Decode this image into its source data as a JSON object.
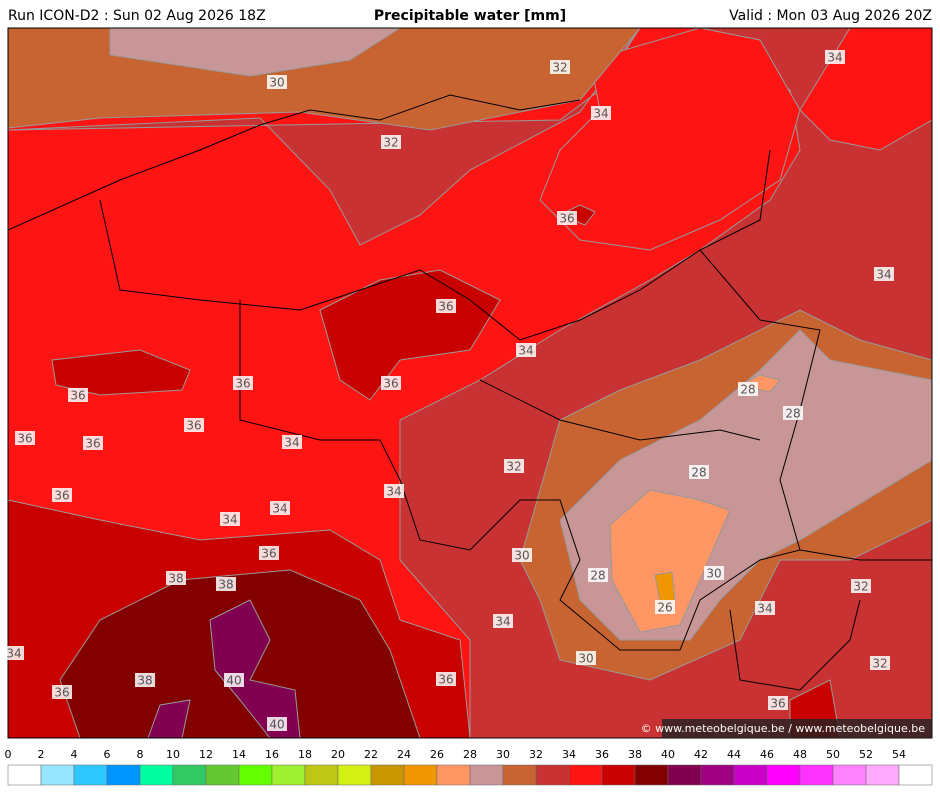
{
  "header": {
    "left": "Run ICON-D2 : Sun 02 Aug 2026 18Z",
    "title": "Precipitable water [mm]",
    "right": "Valid : Mon 03 Aug 2026 20Z"
  },
  "contour_labels": [
    30,
    32,
    34,
    34,
    32,
    36,
    34,
    36,
    34,
    36,
    36,
    36,
    28,
    28,
    36,
    36,
    36,
    34,
    32,
    28,
    34,
    36,
    34,
    34,
    36,
    30,
    28,
    30,
    38,
    38,
    32,
    26,
    34,
    34,
    30,
    34,
    32,
    38,
    40,
    36,
    36,
    36,
    40
  ],
  "credit": "© www.meteobelgique.be / www.meteobelgique.be",
  "colorbar": {
    "ticks": [
      0,
      2,
      4,
      6,
      8,
      10,
      12,
      14,
      16,
      18,
      20,
      22,
      24,
      26,
      28,
      30,
      32,
      34,
      36,
      38,
      40,
      42,
      44,
      46,
      48,
      50,
      52,
      54
    ],
    "colors": [
      "#ffffff",
      "#96e6ff",
      "#2ec8ff",
      "#0096ff",
      "#00ffa0",
      "#32c864",
      "#64c832",
      "#64ff00",
      "#a0f032",
      "#bec814",
      "#d2f014",
      "#c89600",
      "#f09600",
      "#ff9664",
      "#c89696",
      "#c86432",
      "#c83232",
      "#ff1414",
      "#c80000",
      "#820000",
      "#820050",
      "#a00082",
      "#c800c8",
      "#ff00ff",
      "#ff32ff",
      "#ff82ff",
      "#ffaaff",
      "#ffffff"
    ]
  }
}
